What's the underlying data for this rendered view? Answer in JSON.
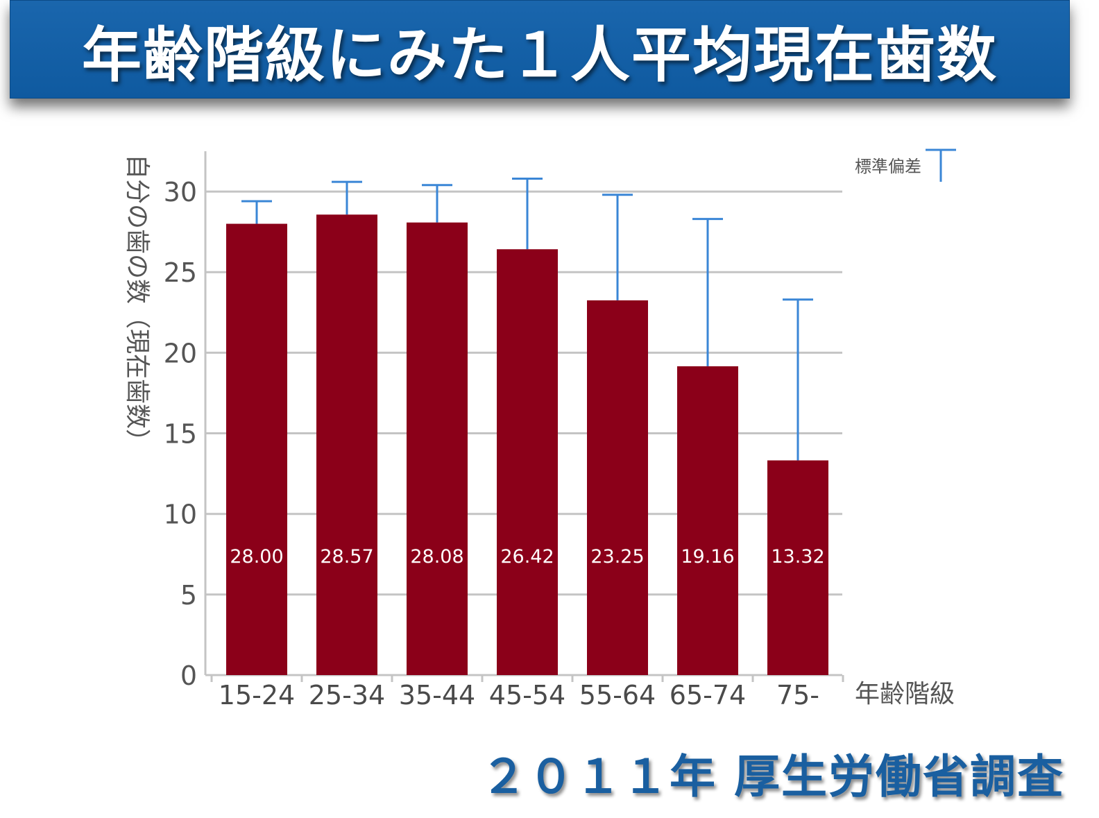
{
  "title": "年齢階級にみた１人平均現在歯数",
  "source": "２０１１年 厚生労働省調査",
  "colors": {
    "banner": "#1562a8",
    "bar": "#8b0019",
    "error_bar": "#3a86d6",
    "grid": "#c4c4c4",
    "source_text": "#1a5fa0"
  },
  "chart_data": {
    "type": "bar",
    "xlabel": "年齢階級",
    "ylabel": "自分の歯の数（現在歯数）",
    "categories": [
      "15-24",
      "25-34",
      "35-44",
      "45-54",
      "55-64",
      "65-74",
      "75-"
    ],
    "values": [
      28.0,
      28.57,
      28.08,
      26.42,
      23.25,
      19.16,
      13.32
    ],
    "value_labels": [
      "28.00",
      "28.57",
      "28.08",
      "26.42",
      "23.25",
      "19.16",
      "13.32"
    ],
    "error_upper": [
      29.4,
      30.6,
      30.4,
      30.8,
      29.8,
      28.3,
      23.3
    ],
    "ylim": [
      0,
      32.5
    ],
    "yticks": [
      0,
      5,
      10,
      15,
      20,
      25,
      30
    ],
    "legend": {
      "label": "標準偏差",
      "position": "top-right"
    },
    "grid": true
  }
}
